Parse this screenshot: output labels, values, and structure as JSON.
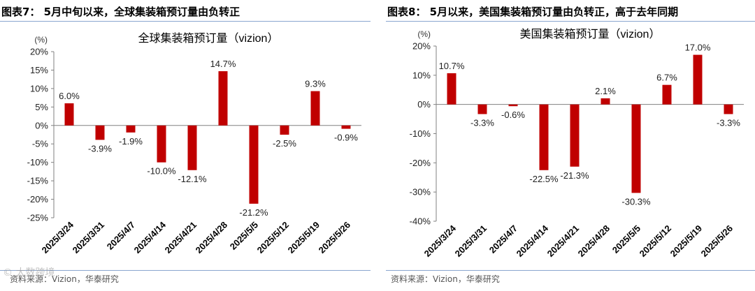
{
  "figures": [
    {
      "header": "图表7：  5月中旬以来，全球集装箱预订量由负转正",
      "source": "资料来源：Vizion，华泰研究",
      "chart_data": {
        "type": "bar",
        "title": "全球集装箱预订量（vizion）",
        "unit": "(%)",
        "categories": [
          "2025/3/24",
          "2025/3/31",
          "2025/4/7",
          "2025/4/14",
          "2025/4/21",
          "2025/4/28",
          "2025/5/5",
          "2025/5/12",
          "2025/5/19",
          "2025/5/26"
        ],
        "values": [
          6.0,
          -3.9,
          -1.9,
          -10.0,
          -12.1,
          14.7,
          -21.2,
          -2.5,
          9.3,
          -0.9
        ],
        "data_labels": [
          "6.0%",
          "-3.9%",
          "-1.9%",
          "-10.0%",
          "-12.1%",
          "14.7%",
          "-21.2%",
          "-2.5%",
          "9.3%",
          "-0.9%"
        ],
        "ylim": [
          -25,
          20
        ],
        "yticks": [
          20,
          15,
          10,
          5,
          0,
          -5,
          -10,
          -15,
          -20,
          -25
        ],
        "ytick_labels": [
          "20%",
          "15%",
          "10%",
          "5%",
          "0%",
          "-5%",
          "-10%",
          "-15%",
          "-20%",
          "-25%"
        ],
        "bar_color": "#c00000",
        "grid": false
      }
    },
    {
      "header": "图表8：  5月以来，美国集装箱预订量由负转正，高于去年同期",
      "source": "资料来源：Vizion，华泰研究",
      "chart_data": {
        "type": "bar",
        "title": "美国集装箱预订量（vizion）",
        "unit": "(%)",
        "categories": [
          "2025/3/24",
          "2025/3/31",
          "2025/4/7",
          "2025/4/14",
          "2025/4/21",
          "2025/4/28",
          "2025/5/5",
          "2025/5/12",
          "2025/5/19",
          "2025/5/26"
        ],
        "values": [
          10.7,
          -3.3,
          -0.6,
          -22.5,
          -21.3,
          2.1,
          -30.3,
          6.7,
          17.0,
          -3.3
        ],
        "data_labels": [
          "10.7%",
          "-3.3%",
          "-0.6%",
          "-22.5%",
          "-21.3%",
          "2.1%",
          "-30.3%",
          "6.7%",
          "17.0%",
          "-3.3%"
        ],
        "ylim": [
          -40,
          20
        ],
        "yticks": [
          20,
          10,
          0,
          -10,
          -20,
          -30,
          -40
        ],
        "ytick_labels": [
          "20%",
          "10%",
          "0%",
          "-10%",
          "-20%",
          "-30%",
          "-40%"
        ],
        "bar_color": "#c00000",
        "grid": false
      }
    }
  ]
}
